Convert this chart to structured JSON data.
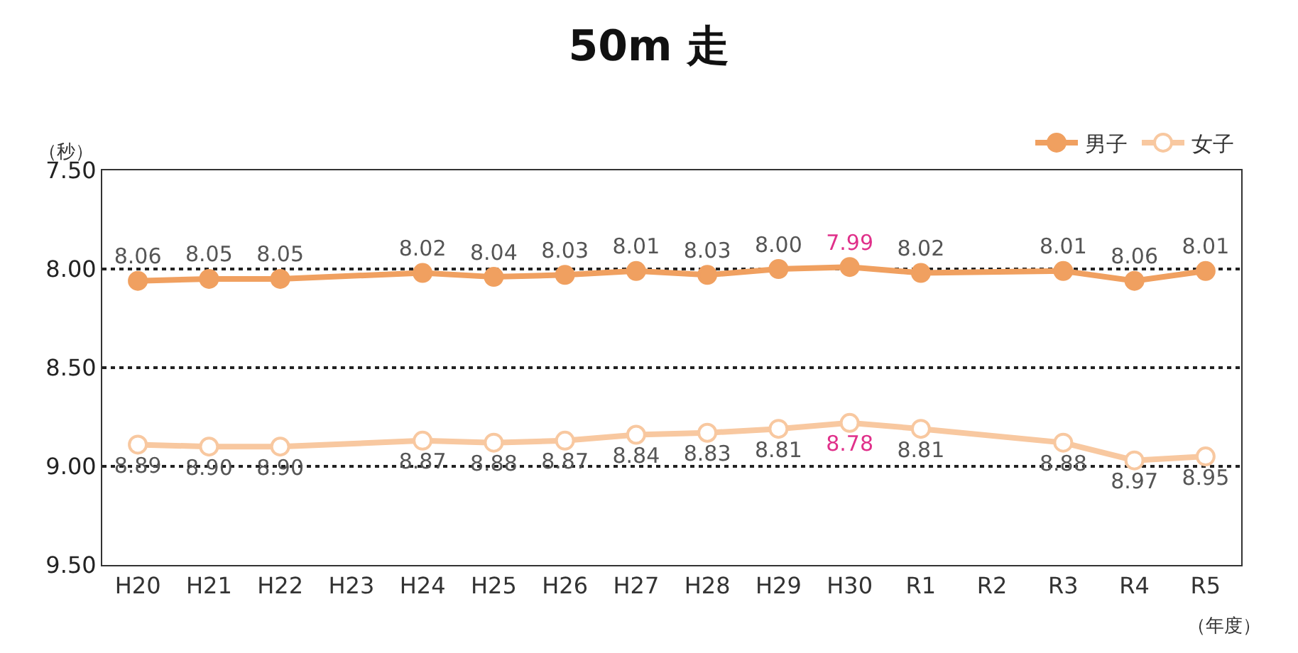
{
  "chart_data": {
    "type": "line",
    "title": "50m 走",
    "ylabel": "（秒）",
    "xlabel": "（年度）",
    "categories": [
      "H20",
      "H21",
      "H22",
      "H23",
      "H24",
      "H25",
      "H26",
      "H27",
      "H28",
      "H29",
      "H30",
      "R1",
      "R2",
      "R3",
      "R4",
      "R5"
    ],
    "series": [
      {
        "name": "男子",
        "color": "#f0a060",
        "values": [
          8.06,
          8.05,
          8.05,
          null,
          8.02,
          8.04,
          8.03,
          8.01,
          8.03,
          8.0,
          7.99,
          8.02,
          null,
          8.01,
          8.06,
          8.01
        ],
        "value_labels": [
          "8.06",
          "8.05",
          "8.05",
          null,
          "8.02",
          "8.04",
          "8.03",
          "8.01",
          "8.03",
          "8.00",
          "7.99",
          "8.02",
          null,
          "8.01",
          "8.06",
          "8.01"
        ]
      },
      {
        "name": "女子",
        "color": "#f8c8a0",
        "values": [
          8.89,
          8.9,
          8.9,
          null,
          8.87,
          8.88,
          8.87,
          8.84,
          8.83,
          8.81,
          8.78,
          8.81,
          null,
          8.88,
          8.97,
          8.95
        ],
        "value_labels": [
          "8.89",
          "8.90",
          "8.90",
          null,
          "8.87",
          "8.88",
          "8.87",
          "8.84",
          "8.83",
          "8.81",
          "8.78",
          "8.81",
          null,
          "8.88",
          "8.97",
          "8.95"
        ]
      }
    ],
    "ylim": [
      9.5,
      7.5
    ],
    "yticks": [
      {
        "value": 7.5,
        "label": "7.50"
      },
      {
        "value": 8.0,
        "label": "8.00"
      },
      {
        "value": 8.5,
        "label": "8.50"
      },
      {
        "value": 9.0,
        "label": "9.00"
      },
      {
        "value": 9.5,
        "label": "9.50"
      }
    ],
    "grid": "y",
    "legend": "top right",
    "marker": "circle",
    "line_style": "solid"
  }
}
